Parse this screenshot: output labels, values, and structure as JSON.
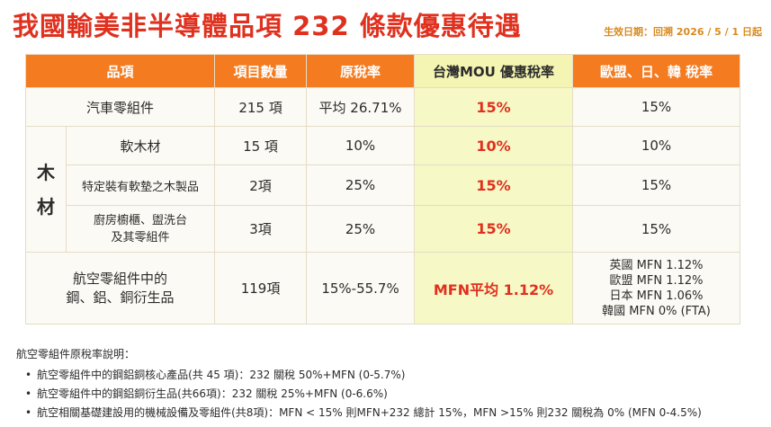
{
  "title": "我國輸美非半導體品項 232 條款優惠待遇",
  "effective_date": "生效日期：回溯 2026 / 5 / 1 日起",
  "colors": {
    "accent": "#e0301e",
    "header": "#f47b20",
    "mou_column": "#f6f8c6"
  },
  "table": {
    "headers": [
      "品項",
      "項目數量",
      "原稅率",
      "台灣MOU 優惠稅率",
      "歐盟、日、韓 稅率"
    ],
    "wood_label": [
      "木",
      "材"
    ],
    "rows": [
      {
        "item": "汽車零組件",
        "count": "215 項",
        "original": "平均 26.71%",
        "mou": "15%",
        "others": "15%"
      },
      {
        "item": "軟木材",
        "count": "15 項",
        "original": "10%",
        "mou": "10%",
        "others": "10%"
      },
      {
        "item": "特定裝有軟墊之木製品",
        "count": "2項",
        "original": "25%",
        "mou": "15%",
        "others": "15%"
      },
      {
        "item_lines": [
          "廚房櫥櫃、盥洗台",
          "及其零組件"
        ],
        "count": "3項",
        "original": "25%",
        "mou": "15%",
        "others": "15%"
      },
      {
        "item_lines": [
          "航空零組件中的",
          "鋼、鋁、銅衍生品"
        ],
        "count": "119項",
        "original": "15%-55.7%",
        "mou": "MFN平均 1.12%",
        "others_lines": [
          "英國 MFN 1.12%",
          "歐盟 MFN 1.12%",
          "日本 MFN 1.06%",
          "韓國 MFN 0% (FTA)"
        ]
      }
    ]
  },
  "notes": {
    "heading": "航空零組件原稅率說明：",
    "items": [
      "航空零組件中的鋼鋁銅核心產品(共 45 項)：232 關稅 50%+MFN (0-5.7%)",
      "航空零組件中的鋼鋁銅衍生品(共66項)：232 關稅 25%+MFN (0-6.6%)",
      "航空相關基礎建設用的機械設備及零組件(共8項)：MFN < 15% 則MFN+232 總計 15%，MFN >15% 則232 關稅為 0% (MFN 0-4.5%)"
    ],
    "bullet": "•"
  }
}
